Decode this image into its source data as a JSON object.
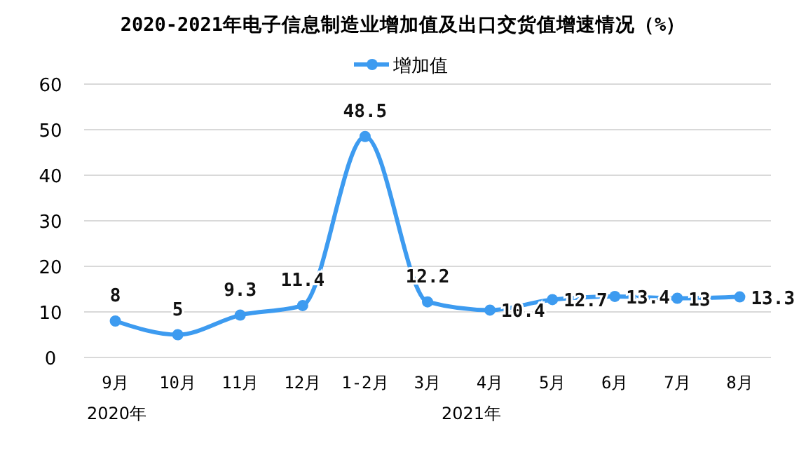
{
  "chart_data": {
    "type": "line",
    "title": "2020-2021年电子信息制造业增加值及出口交货值增速情况（%）",
    "categories": [
      "9月",
      "10月",
      "11月",
      "12月",
      "1-2月",
      "3月",
      "4月",
      "5月",
      "6月",
      "7月",
      "8月"
    ],
    "series": [
      {
        "name": "增加值",
        "color": "#3d9bf0",
        "values": [
          8,
          5,
          9.3,
          11.4,
          48.5,
          12.2,
          10.4,
          12.7,
          13.4,
          13,
          13.3
        ]
      }
    ],
    "ylim": [
      0,
      60
    ],
    "yticks": [
      0,
      10,
      20,
      30,
      40,
      50,
      60
    ],
    "grid": "y",
    "legend": "top",
    "marker": "circle",
    "line_style": "solid",
    "data_labels": true,
    "annotations": [
      "2020年",
      "2021年"
    ]
  }
}
